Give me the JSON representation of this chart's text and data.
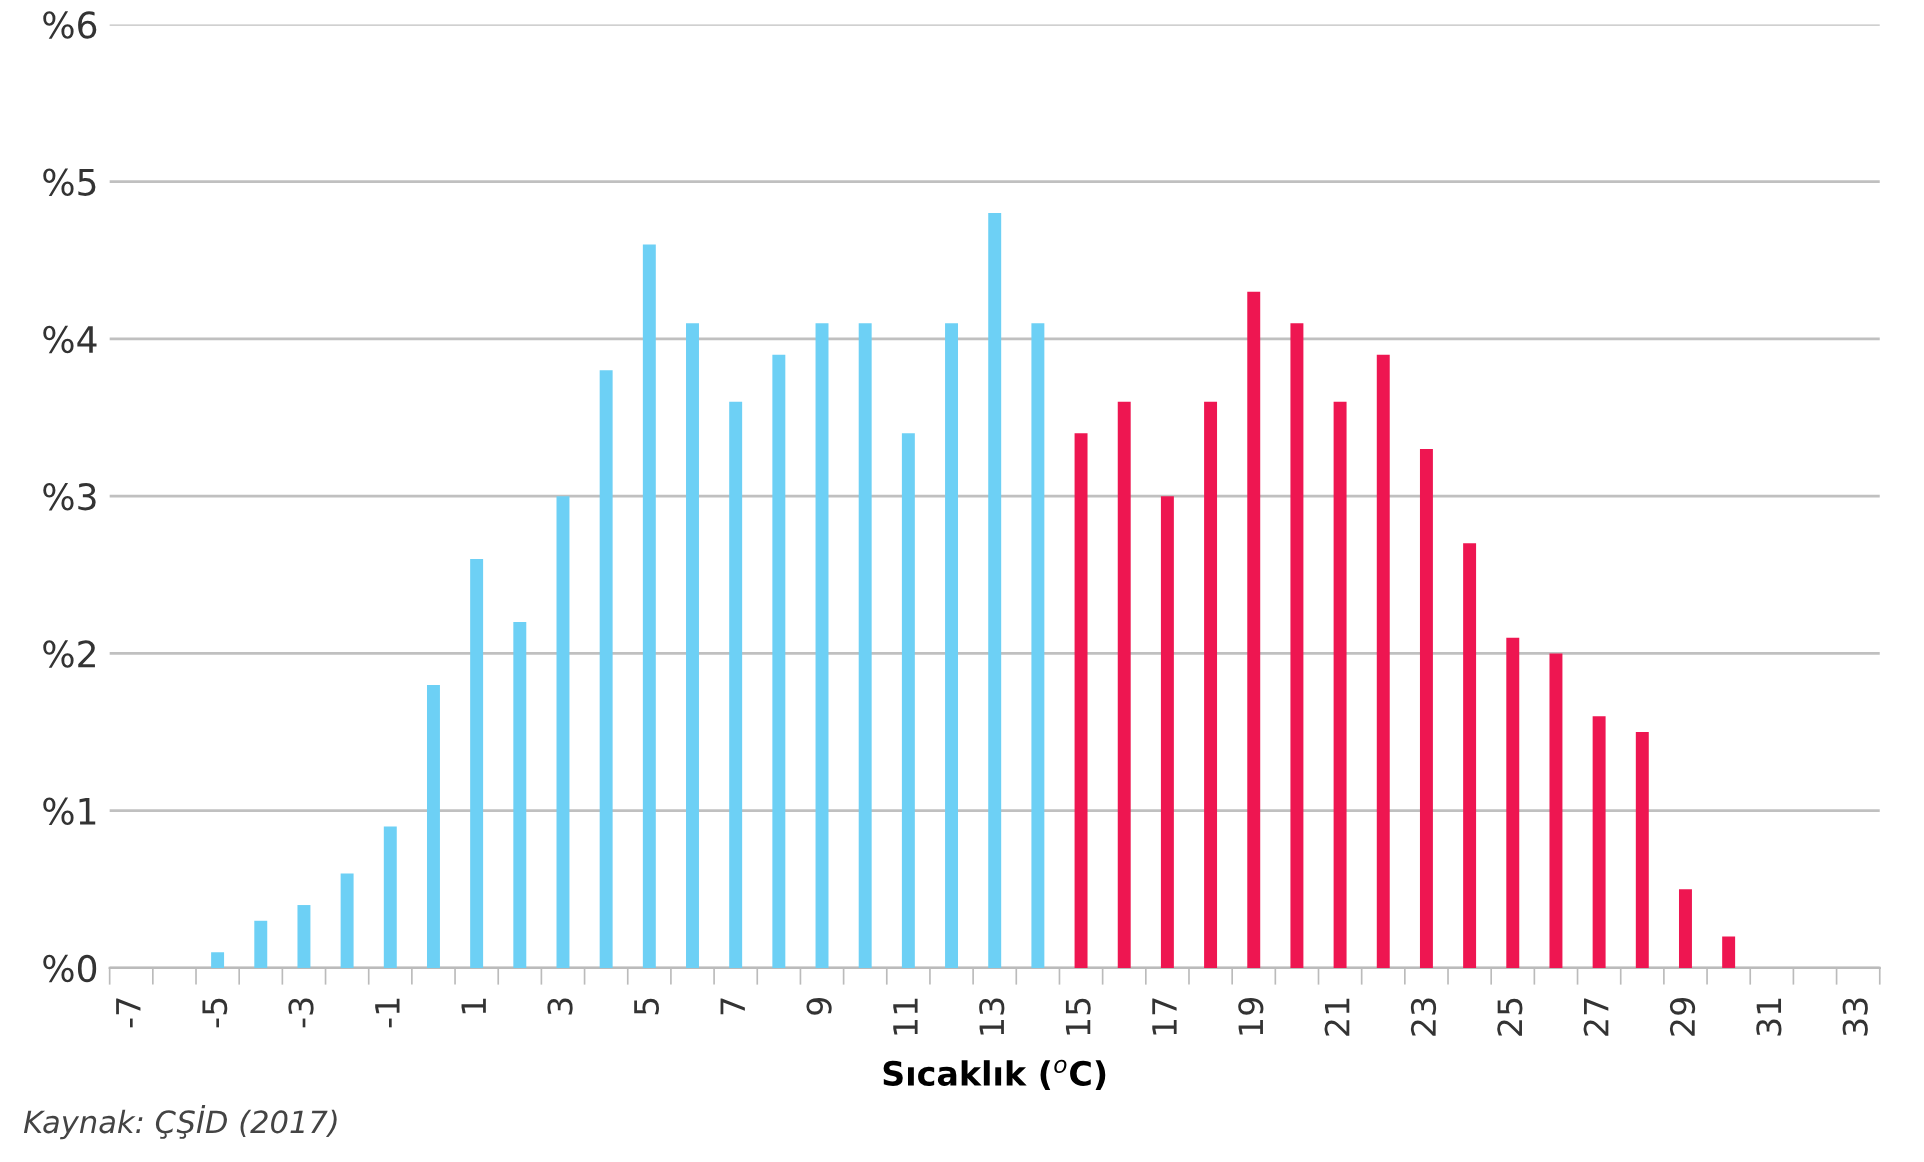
{
  "chart_data": {
    "type": "bar",
    "xlabel": "Sıcaklık ($^{o}$C)",
    "categories": [
      "-7",
      null,
      "-5",
      null,
      "-3",
      null,
      "-1",
      null,
      "1",
      null,
      "3",
      null,
      "5",
      null,
      "7",
      null,
      "9",
      null,
      "11",
      null,
      "13",
      null,
      "15",
      null,
      "17",
      null,
      "19",
      null,
      "21",
      null,
      "23",
      null,
      "25",
      null,
      "27",
      null,
      "29",
      null,
      "31",
      null,
      "33"
    ],
    "values": [
      0,
      0,
      0.1,
      0.3,
      0.4,
      0.6,
      0.9,
      1.8,
      2.6,
      2.2,
      3.0,
      3.8,
      4.6,
      4.1,
      3.6,
      3.9,
      4.1,
      4.1,
      3.4,
      4.1,
      4.8,
      4.1,
      3.4,
      3.6,
      3.0,
      3.6,
      4.3,
      4.1,
      3.6,
      3.9,
      3.3,
      2.7,
      2.1,
      2.0,
      1.6,
      1.5,
      0.5,
      0.2,
      0,
      0,
      0
    ],
    "colors": [
      "#6dd0f5",
      "#6dd0f5",
      "#6dd0f5",
      "#6dd0f5",
      "#6dd0f5",
      "#6dd0f5",
      "#6dd0f5",
      "#6dd0f5",
      "#6dd0f5",
      "#6dd0f5",
      "#6dd0f5",
      "#6dd0f5",
      "#6dd0f5",
      "#6dd0f5",
      "#6dd0f5",
      "#6dd0f5",
      "#6dd0f5",
      "#6dd0f5",
      "#6dd0f5",
      "#6dd0f5",
      "#6dd0f5",
      "#6dd0f5",
      "#ee1651",
      "#ee1651",
      "#ee1651",
      "#ee1651",
      "#ee1651",
      "#ee1651",
      "#ee1651",
      "#ee1651",
      "#ee1651",
      "#ee1651",
      "#ee1651",
      "#ee1651",
      "#ee1651",
      "#ee1651",
      "#ee1651",
      "#ee1651",
      "#ee1651",
      "#ee1651",
      "#ee1651"
    ],
    "ylim": [
      0,
      6
    ],
    "yticks": [
      {
        "value": 0,
        "label": "%0"
      },
      {
        "value": 1,
        "label": "%1"
      },
      {
        "value": 2,
        "label": "%2"
      },
      {
        "value": 3,
        "label": "%3"
      },
      {
        "value": 4,
        "label": "%4"
      },
      {
        "value": 5,
        "label": "%5"
      },
      {
        "value": 6,
        "label": "%6"
      }
    ],
    "grid": "y",
    "legend": false,
    "annotations": [
      "Kaynak: ÇŞİD (2017)"
    ]
  }
}
